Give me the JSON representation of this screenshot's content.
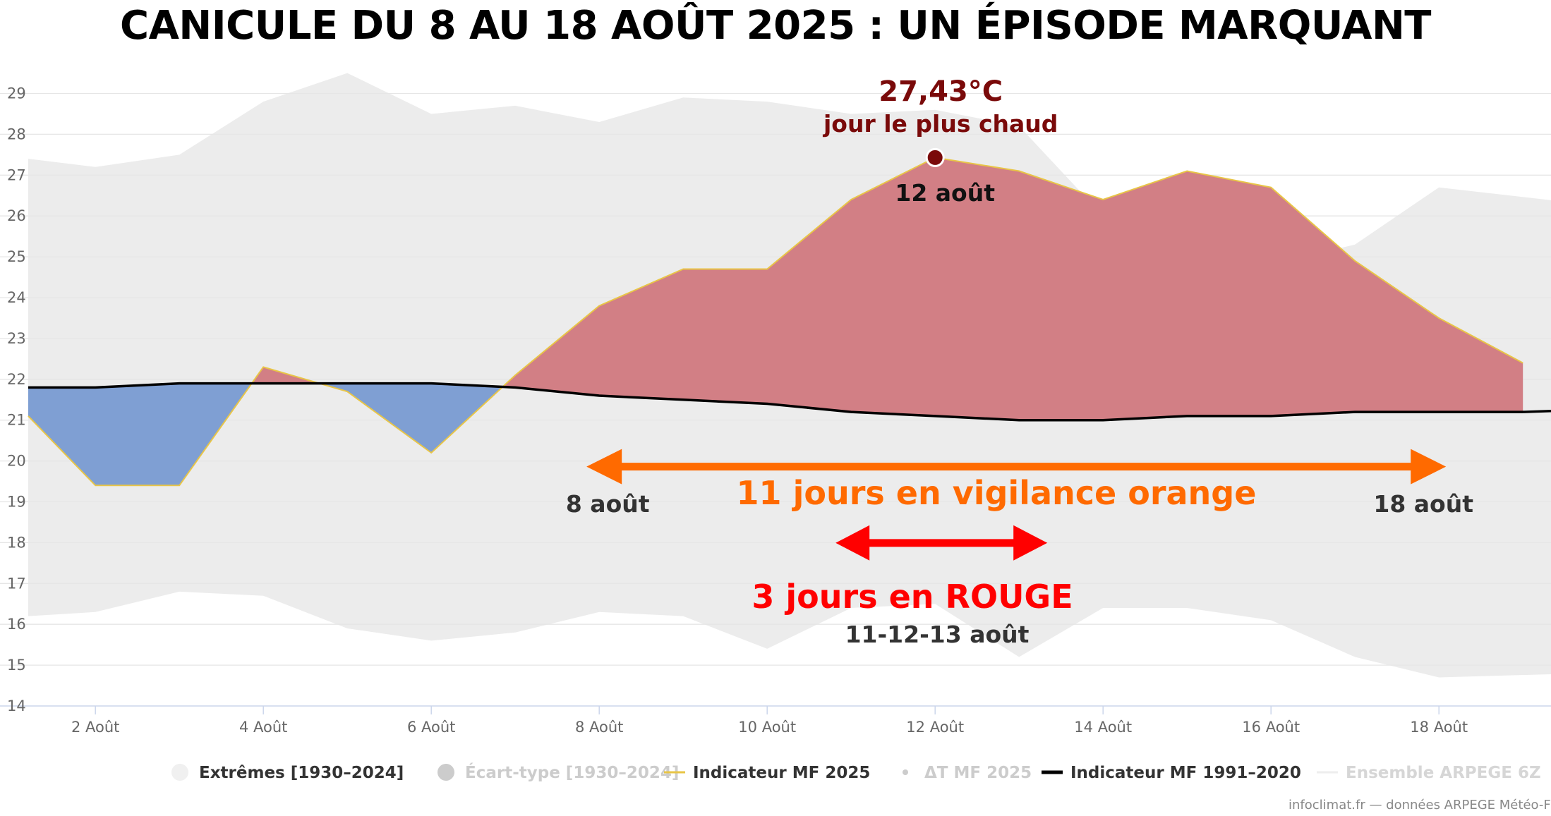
{
  "page_title": "CANICULE DU 8 AU 18 AOÛT 2025 : UN ÉPISODE MARQUANT",
  "colors": {
    "grid": "#e6e6e6",
    "extremes_band": "#ececec",
    "above_fill": "#d27f85",
    "below_fill": "#7f9fd3",
    "mf2025_line": "#e8c547",
    "ref_line": "#000000",
    "hottest_dot": "#7a0a0a",
    "hottest_text": "#7a0a0a",
    "orange": "#ff6a00",
    "red": "#ff0000",
    "dark_text": "#333333"
  },
  "chart_data": {
    "type": "area",
    "title": "CANICULE DU 8 AU 18 AOÛT 2025 : UN ÉPISODE MARQUANT",
    "xlabel": "",
    "ylabel": "",
    "x_unit": "day of August 2025",
    "xlim": [
      1.2,
      19.7
    ],
    "ylim": [
      14,
      29.5
    ],
    "y_ticks": [
      14,
      15,
      16,
      17,
      18,
      19,
      20,
      21,
      22,
      23,
      24,
      25,
      26,
      27,
      28,
      29
    ],
    "x_ticks": [
      {
        "day": 2,
        "label": "2 Août"
      },
      {
        "day": 4,
        "label": "4 Août"
      },
      {
        "day": 6,
        "label": "6 Août"
      },
      {
        "day": 8,
        "label": "8 Août"
      },
      {
        "day": 10,
        "label": "10 Août"
      },
      {
        "day": 12,
        "label": "12 Août"
      },
      {
        "day": 14,
        "label": "14 Août"
      },
      {
        "day": 16,
        "label": "16 Août"
      },
      {
        "day": 18,
        "label": "18 Août"
      }
    ],
    "grid": true,
    "legend_position": "bottom",
    "series": [
      {
        "name": "Extrêmes [1930–2024]",
        "kind": "band",
        "x": [
          1.2,
          2,
          3,
          4,
          5,
          6,
          7,
          8,
          9,
          10,
          11,
          12,
          13,
          14,
          15,
          16,
          17,
          18,
          19.7
        ],
        "low": [
          16.2,
          16.3,
          16.8,
          16.7,
          15.9,
          15.6,
          15.8,
          16.3,
          16.2,
          15.4,
          16.4,
          16.5,
          15.2,
          16.4,
          16.4,
          16.1,
          15.2,
          14.7,
          14.8
        ],
        "high": [
          27.4,
          27.2,
          27.5,
          28.8,
          29.5,
          28.5,
          28.7,
          28.3,
          28.9,
          28.8,
          28.5,
          28.6,
          28.2,
          26.0,
          25.1,
          24.8,
          25.3,
          26.7,
          26.3
        ]
      },
      {
        "name": "Indicateur MF 2025",
        "kind": "line",
        "x": [
          1.2,
          2,
          3,
          4,
          5,
          6,
          7,
          8,
          9,
          10,
          11,
          12,
          13,
          14,
          15,
          16,
          17,
          18,
          19
        ],
        "values": [
          21.1,
          19.4,
          19.4,
          22.3,
          21.7,
          20.2,
          22.1,
          23.8,
          24.7,
          24.7,
          26.4,
          27.43,
          27.1,
          26.4,
          27.1,
          26.7,
          24.9,
          23.5,
          22.4
        ]
      },
      {
        "name": "Indicateur MF 1991–2020",
        "kind": "line",
        "x": [
          1.2,
          2,
          3,
          4,
          5,
          6,
          7,
          8,
          9,
          10,
          11,
          12,
          13,
          14,
          15,
          16,
          17,
          18,
          19,
          19.7
        ],
        "values": [
          21.8,
          21.8,
          21.9,
          21.9,
          21.9,
          21.9,
          21.8,
          21.6,
          21.5,
          21.4,
          21.2,
          21.1,
          21.0,
          21.0,
          21.1,
          21.1,
          21.2,
          21.2,
          21.2,
          21.25
        ]
      }
    ],
    "legend": [
      {
        "label": "Extrêmes [1930–2024]",
        "symbol": "circle",
        "color": "#f0f0f0",
        "text_color": "#333333"
      },
      {
        "label": "Écart-type [1930–2024]",
        "symbol": "circle",
        "color": "#cccccc",
        "text_color": "#cccccc"
      },
      {
        "label": "Indicateur MF 2025",
        "symbol": "line",
        "color": "#e8c547",
        "text_color": "#333333"
      },
      {
        "label": "ΔT MF 2025",
        "symbol": "dot",
        "color": "#cccccc",
        "text_color": "#cccccc"
      },
      {
        "label": "Indicateur MF 1991–2020",
        "symbol": "line",
        "color": "#000000",
        "text_color": "#333333"
      },
      {
        "label": "Ensemble ARPEGE 6Z",
        "symbol": "line",
        "color": "#eeeeee",
        "text_color": "#d6d6d6"
      }
    ],
    "annotations": {
      "hottest_value": "27,43°C",
      "hottest_caption": "jour le plus chaud",
      "hottest_date": "12 août",
      "hottest_day": 12,
      "orange_label": "11 jours en vigilance orange",
      "orange_start_label": "8 août",
      "orange_end_label": "18 août",
      "orange_from_day": 8,
      "orange_to_day": 18,
      "orange_y": 20,
      "red_label": "3 jours en ROUGE",
      "red_dates": "11-12-13 août",
      "red_from_day": 11,
      "red_to_day": 13,
      "red_y": 18.2
    }
  },
  "credit": "infoclimat.fr — données ARPEGE Météo-France"
}
